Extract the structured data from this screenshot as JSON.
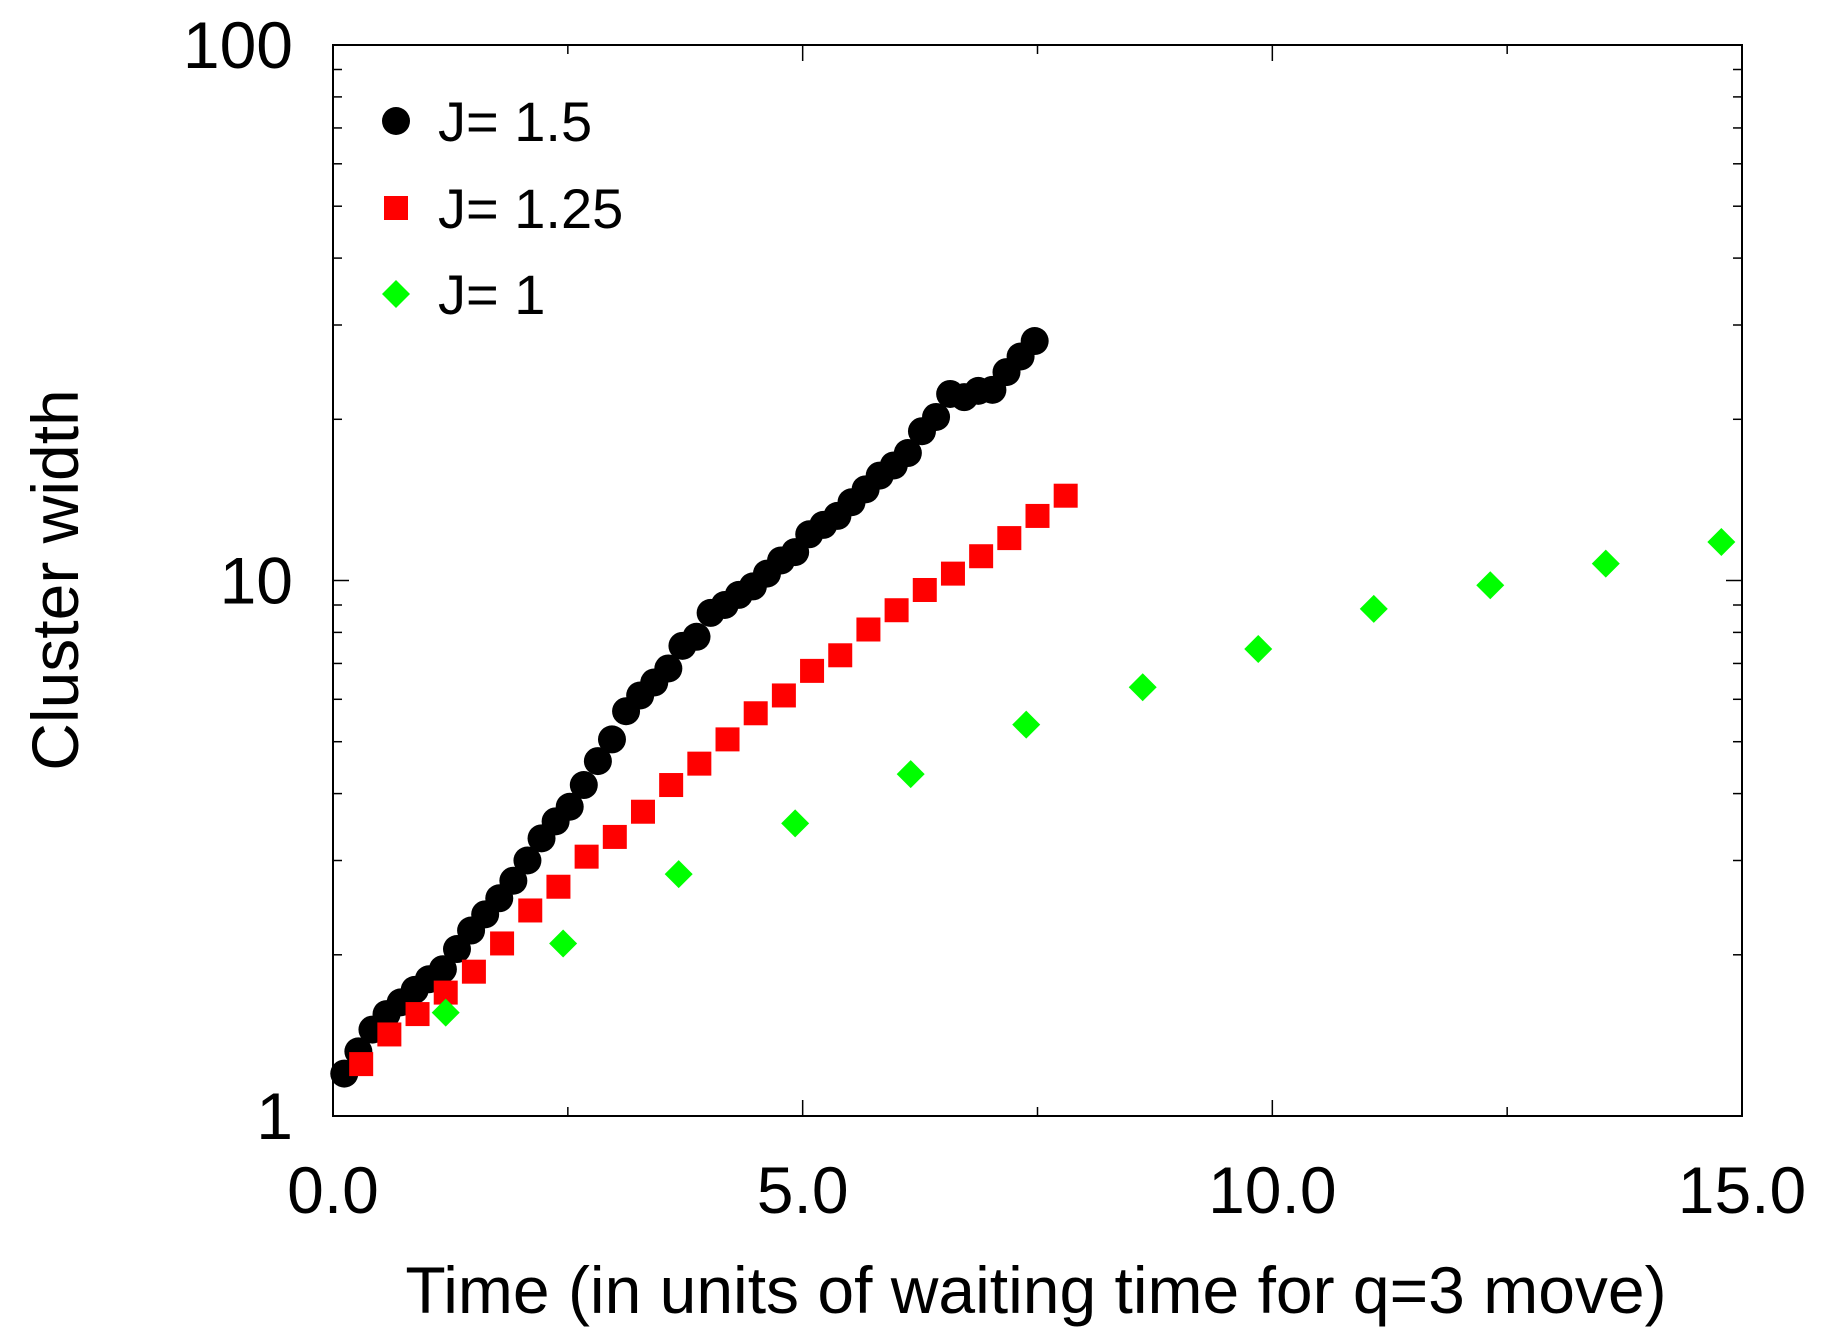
{
  "chart_data": {
    "type": "scatter",
    "title": "",
    "xlabel": "Time (in units of waiting time for q=3 move)",
    "ylabel": "Cluster width",
    "xlim": [
      0,
      15
    ],
    "ylim": [
      1,
      100
    ],
    "yscale": "log",
    "x_ticks": [
      0,
      5,
      10,
      15
    ],
    "x_tick_labels": [
      "0.0",
      "5.0",
      "10.0",
      "15.0"
    ],
    "y_ticks": [
      1,
      10,
      100
    ],
    "y_tick_labels": [
      "1",
      "10",
      "100"
    ],
    "grid": false,
    "legend_position": "top-left",
    "series": [
      {
        "name": "J= 1.5",
        "marker": "circle",
        "color": "#000000",
        "x": [
          0.12,
          0.27,
          0.42,
          0.57,
          0.72,
          0.87,
          1.02,
          1.17,
          1.32,
          1.47,
          1.62,
          1.77,
          1.92,
          2.07,
          2.22,
          2.37,
          2.52,
          2.67,
          2.82,
          2.97,
          3.12,
          3.27,
          3.42,
          3.57,
          3.72,
          3.87,
          4.02,
          4.17,
          4.32,
          4.47,
          4.62,
          4.77,
          4.92,
          5.07,
          5.22,
          5.37,
          5.52,
          5.67,
          5.82,
          5.97,
          6.12,
          6.27,
          6.42,
          6.57,
          6.72,
          6.87,
          7.02,
          7.17,
          7.32,
          7.47
        ],
        "y": [
          1.2,
          1.32,
          1.45,
          1.55,
          1.63,
          1.72,
          1.8,
          1.88,
          2.05,
          2.22,
          2.38,
          2.55,
          2.75,
          3.0,
          3.3,
          3.55,
          3.78,
          4.15,
          4.6,
          5.05,
          5.7,
          6.1,
          6.45,
          6.85,
          7.55,
          7.85,
          8.7,
          9.0,
          9.4,
          9.75,
          10.3,
          10.9,
          11.3,
          12.2,
          12.7,
          13.2,
          14.0,
          14.8,
          15.7,
          16.4,
          17.3,
          19.0,
          20.2,
          22.3,
          22.0,
          22.6,
          22.7,
          24.5,
          26.2,
          28.0
        ]
      },
      {
        "name": "J= 1.25",
        "marker": "square",
        "color": "#ff0000",
        "x": [
          0.3,
          0.6,
          0.9,
          1.2,
          1.5,
          1.8,
          2.1,
          2.4,
          2.7,
          3.0,
          3.3,
          3.6,
          3.9,
          4.2,
          4.5,
          4.8,
          5.1,
          5.4,
          5.7,
          6.0,
          6.3,
          6.6,
          6.9,
          7.2,
          7.5,
          7.8
        ],
        "y": [
          1.25,
          1.42,
          1.55,
          1.7,
          1.86,
          2.1,
          2.42,
          2.68,
          3.05,
          3.32,
          3.7,
          4.15,
          4.55,
          5.05,
          5.65,
          6.1,
          6.78,
          7.25,
          8.1,
          8.8,
          9.6,
          10.3,
          11.1,
          12.0,
          13.2,
          14.4
        ]
      },
      {
        "name": "J= 1",
        "marker": "diamond",
        "color": "#00ff00",
        "x": [
          1.2,
          2.45,
          3.68,
          4.92,
          6.15,
          7.38,
          8.62,
          9.85,
          11.08,
          12.32,
          13.55,
          14.78
        ],
        "y": [
          1.56,
          2.1,
          2.83,
          3.52,
          4.35,
          5.38,
          6.32,
          7.45,
          8.85,
          9.8,
          10.75,
          11.8
        ]
      }
    ]
  }
}
